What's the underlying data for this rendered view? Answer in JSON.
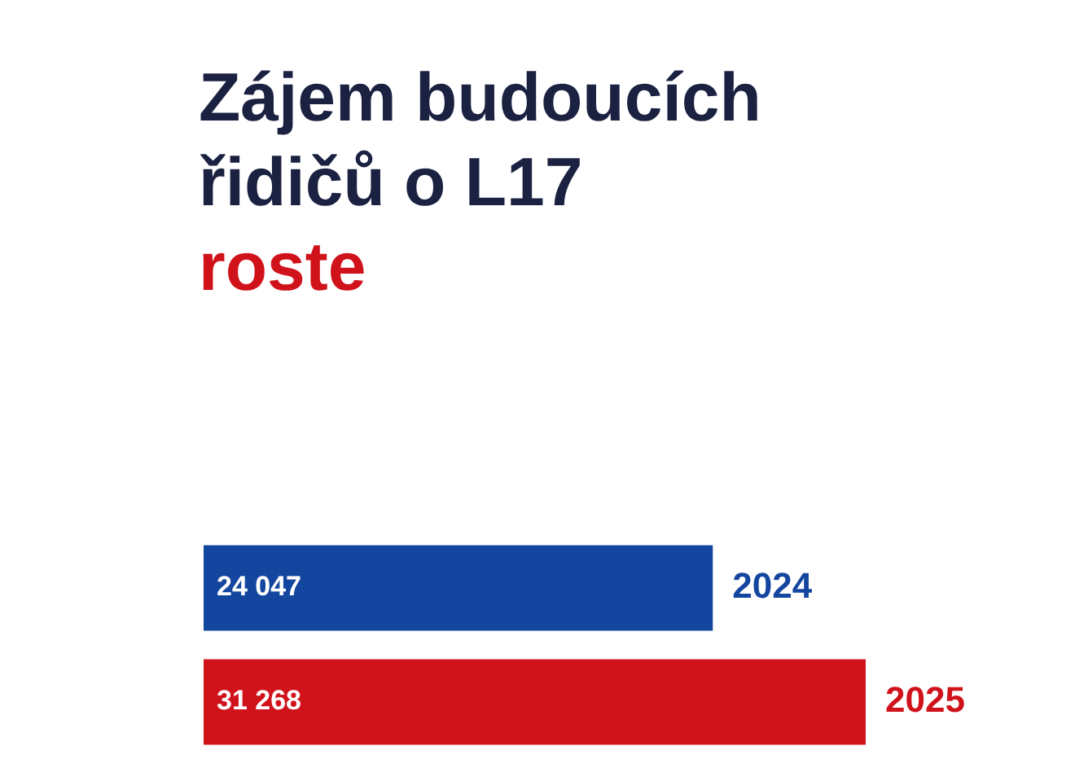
{
  "chart_data": {
    "type": "bar",
    "orientation": "horizontal",
    "title": "Zájem budoucích řidičů o L17",
    "subtitle": "roste",
    "categories": [
      "2024",
      "2025"
    ],
    "values": [
      24047,
      31268
    ],
    "colors": [
      "#1446a0",
      "#d0121b"
    ],
    "data_labels": true
  }
}
